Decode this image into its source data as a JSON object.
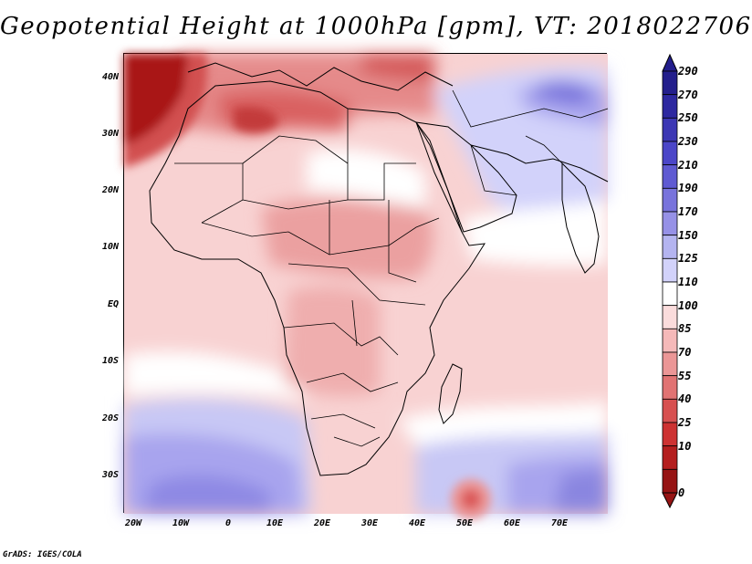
{
  "title": "Geopotential Height at 1000hPa [gpm], VT: 2018022706",
  "credit": "GrADS: IGES/COLA",
  "axes": {
    "y_labels": [
      "40N",
      "30N",
      "20N",
      "10N",
      "EQ",
      "10S",
      "20S",
      "30S"
    ],
    "x_labels": [
      "20W",
      "10W",
      "0",
      "10E",
      "20E",
      "30E",
      "40E",
      "50E",
      "60E",
      "70E"
    ]
  },
  "colorbar": {
    "levels": [
      "290",
      "270",
      "250",
      "230",
      "210",
      "190",
      "170",
      "150",
      "125",
      "110",
      "100",
      "85",
      "70",
      "55",
      "40",
      "25",
      "10",
      "0"
    ],
    "colors": [
      "#231e8c",
      "#2d28a0",
      "#3c37b4",
      "#4b46c8",
      "#5f5ad2",
      "#7873dc",
      "#9691e6",
      "#b4b4f0",
      "#d2d2fa",
      "#ffffff",
      "#fadcdc",
      "#f5b9b9",
      "#eb9696",
      "#e17373",
      "#d75050",
      "#cd3232",
      "#b41e1e",
      "#961414"
    ]
  },
  "map": {
    "region": "Africa and Middle East",
    "lon_range": [
      -22,
      80
    ],
    "lat_range": [
      -37,
      45
    ],
    "field": "1000 hPa geopotential height"
  }
}
